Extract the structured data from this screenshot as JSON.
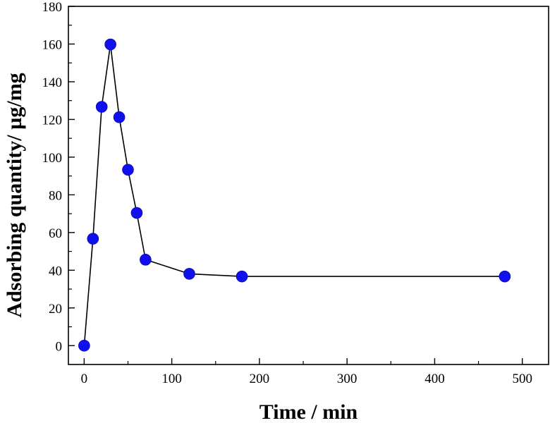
{
  "chart_data": {
    "type": "line",
    "xlabel": "Time / min",
    "ylabel": "Adsorbing quantity/ µg/mg",
    "xlim": [
      -18,
      530
    ],
    "ylim": [
      -10,
      180
    ],
    "x_ticks": [
      0,
      100,
      200,
      300,
      400,
      500
    ],
    "x_tick_labels": [
      "0",
      "100",
      "200",
      "300",
      "400",
      "500"
    ],
    "x_minor_ticks": [
      50,
      150,
      250,
      350,
      450
    ],
    "y_ticks": [
      0,
      20,
      40,
      60,
      80,
      100,
      120,
      140,
      160,
      180
    ],
    "y_tick_labels": [
      "0",
      "20",
      "40",
      "60",
      "80",
      "100",
      "120",
      "140",
      "160",
      "180"
    ],
    "y_minor_ticks": [
      10,
      30,
      50,
      70,
      90,
      110,
      130,
      150,
      170
    ],
    "grid": false,
    "legend": "none",
    "series": [
      {
        "x": [
          0,
          10,
          20,
          30,
          40,
          50,
          60,
          70,
          120,
          180,
          480
        ],
        "y": [
          0,
          56.7,
          126.7,
          159.8,
          121.2,
          93.3,
          70.4,
          45.6,
          38.1,
          36.7,
          36.7
        ],
        "line_color": "#000000",
        "marker": "circle",
        "marker_color": "#1010ee"
      }
    ]
  }
}
